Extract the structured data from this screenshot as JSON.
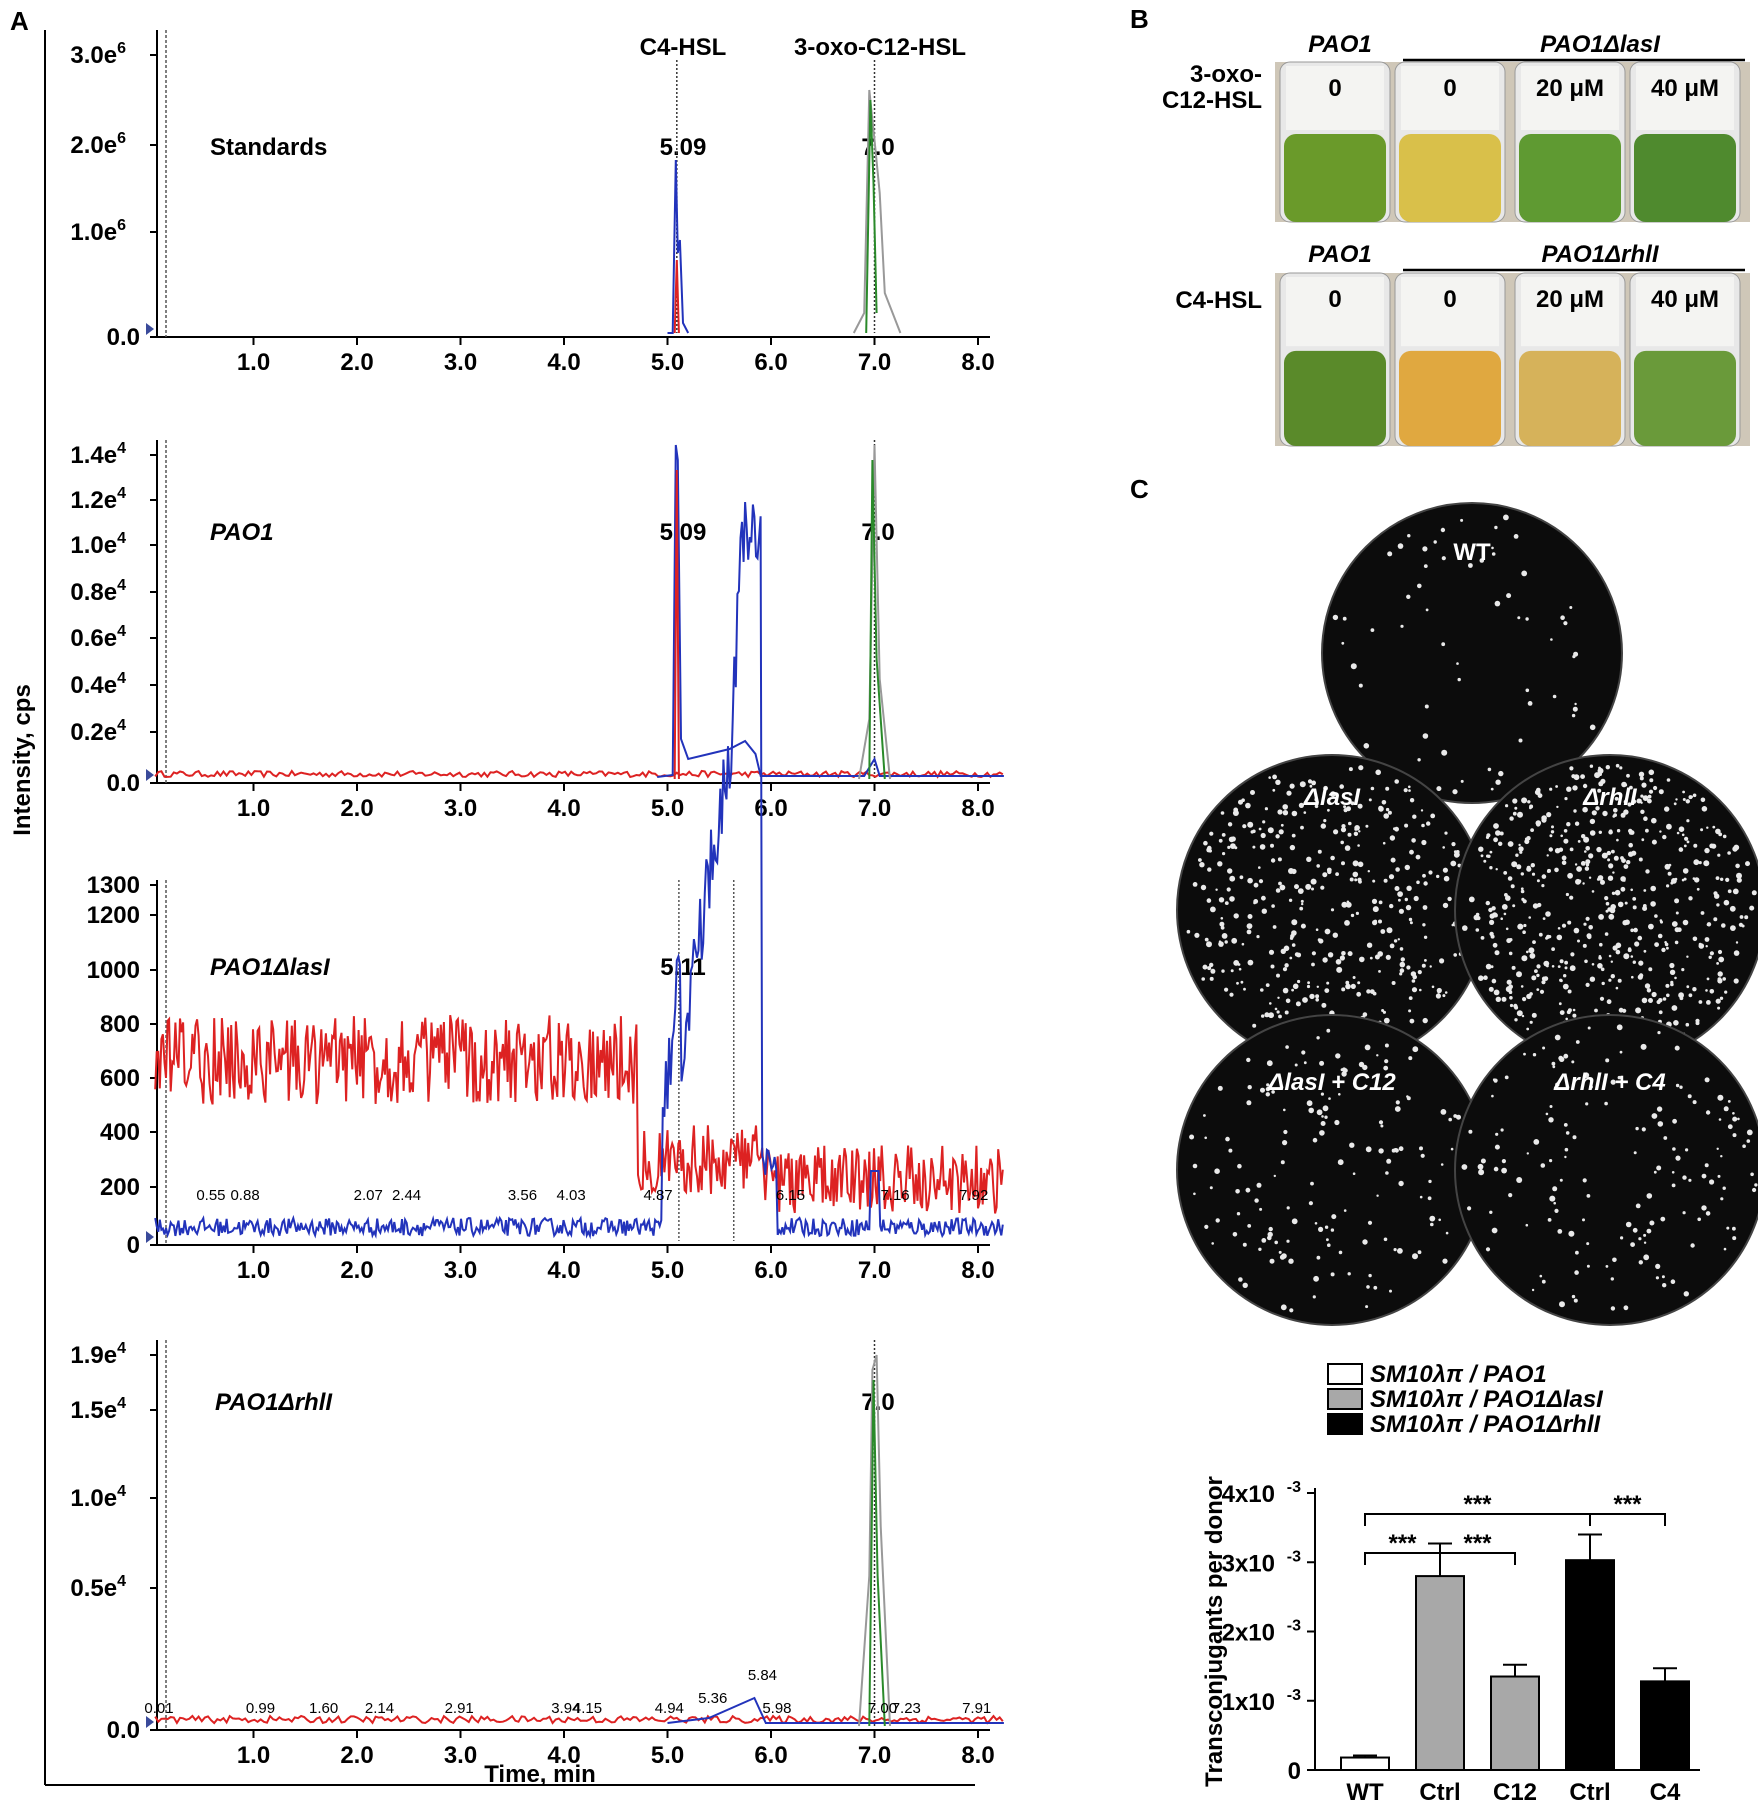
{
  "panels": {
    "a": "A",
    "b": "B",
    "c": "C"
  },
  "panel_a": {
    "ylabel": "Intensity, cps",
    "xlabel": "Time, min",
    "charts": [
      {
        "name": "Standards",
        "yticks": [
          "3.0e",
          "2.0e",
          "1.0e",
          "0.0"
        ],
        "yexp": [
          "6",
          "6",
          "6",
          ""
        ],
        "xticks": [
          "1.0",
          "2.0",
          "3.0",
          "4.0",
          "5.0",
          "6.0",
          "7.0",
          "8.0"
        ],
        "peak_labels": [
          "5.09",
          "7.0"
        ],
        "compound_labels": [
          "C4-HSL",
          "3-oxo-C12-HSL"
        ]
      },
      {
        "name": "PAO1",
        "yticks": [
          "1.4e",
          "1.2e",
          "1.0e",
          "0.8e",
          "0.6e",
          "0.4e",
          "0.2e",
          "0.0"
        ],
        "yexp": [
          "4",
          "4",
          "4",
          "4",
          "4",
          "4",
          "4",
          ""
        ],
        "xticks": [
          "1.0",
          "2.0",
          "3.0",
          "4.0",
          "5.0",
          "6.0",
          "7.0",
          "8.0"
        ],
        "peak_labels": [
          "5.09",
          "7.0"
        ]
      },
      {
        "name": "PAO1ΔlasI",
        "yticks": [
          "1300",
          "1200",
          "1000",
          "800",
          "600",
          "400",
          "200",
          "0"
        ],
        "xticks": [
          "1.0",
          "2.0",
          "3.0",
          "4.0",
          "5.0",
          "6.0",
          "7.0",
          "8.0"
        ],
        "peak_labels": [
          "5.11"
        ],
        "small_labels": [
          "0.55",
          "0.88",
          "2.07",
          "2.44",
          "3.56",
          "4.03",
          "4.87",
          "6.15",
          "7.16",
          "7.92"
        ]
      },
      {
        "name": "PAO1ΔrhlI",
        "yticks": [
          "1.9e",
          "1.5e",
          "1.0e",
          "0.5e",
          "0.0"
        ],
        "yexp": [
          "4",
          "4",
          "4",
          "4",
          ""
        ],
        "xticks": [
          "1.0",
          "2.0",
          "3.0",
          "4.0",
          "5.0",
          "6.0",
          "7.0",
          "8.0"
        ],
        "peak_labels": [
          "7.0"
        ],
        "small_labels": [
          "0.01",
          "0.99",
          "1.60",
          "2.14",
          "2.91",
          "3.94",
          "4.15",
          "4.94",
          "5.36",
          "5.84",
          "5.98",
          "7.00",
          "7.23",
          "7.91"
        ]
      }
    ]
  },
  "panel_b": {
    "row1": {
      "strain_left": "PAO1",
      "strain_right": "PAO1ΔlasI",
      "compound": "3-oxo-\nC12-HSL",
      "compound_l1": "3-oxo-",
      "compound_l2": "C12-HSL",
      "conc": [
        "0",
        "0",
        "20 μM",
        "40 μM"
      ]
    },
    "row2": {
      "strain_left": "PAO1",
      "strain_right": "PAO1ΔrhlI",
      "compound": "C4-HSL",
      "conc": [
        "0",
        "0",
        "20 μM",
        "40 μM"
      ]
    }
  },
  "panel_c": {
    "plates": [
      "WT",
      "ΔlasI",
      "ΔrhlI",
      "ΔlasI + C12",
      "ΔrhlI + C4"
    ]
  },
  "chart_data": {
    "type": "bar",
    "categories": [
      "WT",
      "Ctrl",
      "C12",
      "Ctrl",
      "C4"
    ],
    "values": [
      0.00018,
      0.0028,
      0.00135,
      0.00303,
      0.00128
    ],
    "errors": [
      3e-05,
      0.00047,
      0.00017,
      0.00037,
      0.00019
    ],
    "colors": [
      "#ffffff",
      "#a8a8a8",
      "#a8a8a8",
      "#000000",
      "#000000"
    ],
    "ylabel": "Transconjugants per donor",
    "ylim": [
      0,
      0.004
    ],
    "yticks": [
      "0",
      "1x10",
      "2x10",
      "3x10",
      "4x10"
    ],
    "ytick_exp": "-3",
    "legend": [
      {
        "name": "SM10λπ / PAO1",
        "color": "#ffffff"
      },
      {
        "name": "SM10λπ / PAO1ΔlasI",
        "color": "#a8a8a8"
      },
      {
        "name": "SM10λπ / PAO1ΔrhlI",
        "color": "#000000"
      }
    ],
    "significance": "***"
  }
}
